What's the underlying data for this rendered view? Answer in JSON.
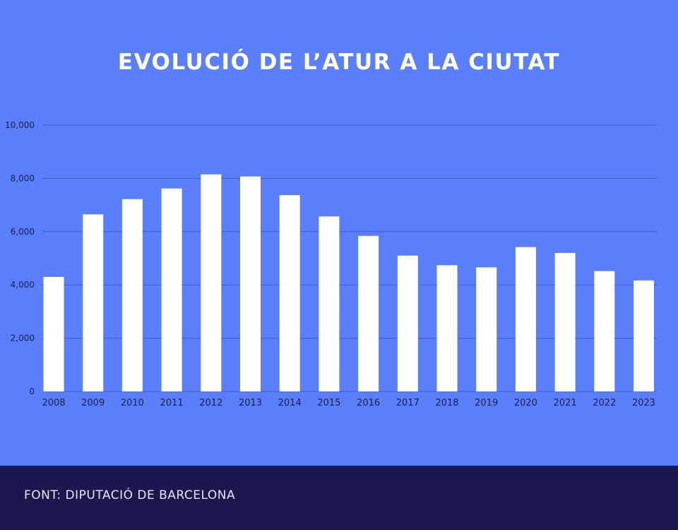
{
  "title": "EVOLUCIÓ DE L’ATUR A LA CIUTAT",
  "source": "FONT: DIPUTACIÓ DE BARCELONA",
  "colors": {
    "background": "#5B7FFA",
    "bars": "#FFFFFF",
    "gridlines": "#3F5BD0",
    "axis_text": "#1B1F4A",
    "footer": "#1B1850"
  },
  "chart_data": {
    "type": "bar",
    "title": "EVOLUCIÓ DE L’ATUR A LA CIUTAT",
    "xlabel": "",
    "ylabel": "",
    "categories": [
      "2008",
      "2009",
      "2010",
      "2011",
      "2012",
      "2013",
      "2014",
      "2015",
      "2016",
      "2017",
      "2018",
      "2019",
      "2020",
      "2021",
      "2022",
      "2023"
    ],
    "values": [
      4300,
      6650,
      7220,
      7620,
      8150,
      8070,
      7370,
      6570,
      5840,
      5100,
      4740,
      4660,
      5420,
      5200,
      4520,
      4170
    ],
    "ylim": [
      0,
      10000
    ],
    "yticks": [
      0,
      2000,
      4000,
      6000,
      8000,
      10000
    ],
    "ytick_labels": [
      "0",
      "2,000",
      "4,000",
      "6,000",
      "8,000",
      "10,000"
    ],
    "grid": true,
    "legend": "none"
  }
}
